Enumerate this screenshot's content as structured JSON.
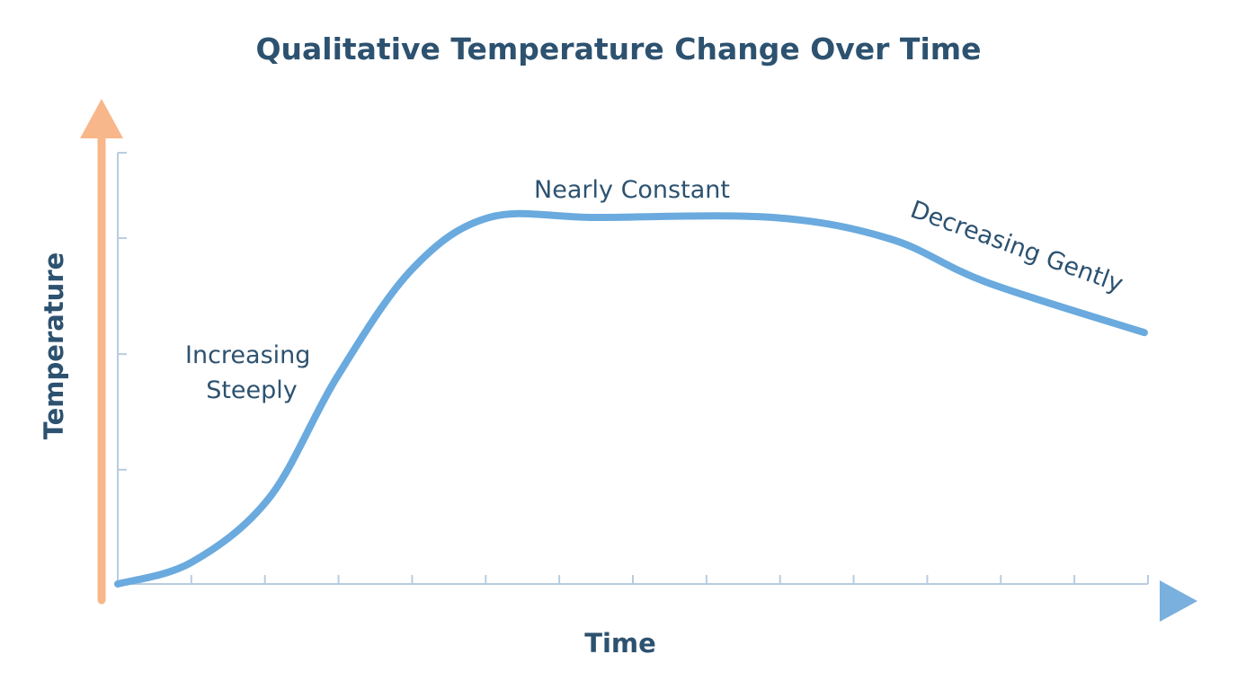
{
  "chart_data": {
    "type": "line",
    "title": "Qualitative Temperature Change Over Time",
    "xlabel": "Time",
    "ylabel": "Temperature",
    "xlim": [
      0,
      14
    ],
    "ylim": [
      0,
      1
    ],
    "x_tick_count": 14,
    "y_ticks": [
      0.265,
      0.533,
      0.802,
      1.0
    ],
    "grid": false,
    "legend": "none",
    "series": [
      {
        "x": [
          0,
          1,
          2.06,
          2.98,
          4,
          5.05,
          6.5,
          8.9,
          10.5,
          11.8,
          13.95
        ],
        "y": [
          0,
          0.05,
          0.2,
          0.48,
          0.73,
          0.85,
          0.85,
          0.85,
          0.8,
          0.7,
          0.583
        ]
      }
    ],
    "annotations": [
      {
        "id": "increasing",
        "lines": [
          "Increasing",
          "Steeply"
        ]
      },
      {
        "id": "constant",
        "lines": [
          "Nearly Constant"
        ]
      },
      {
        "id": "decreasing",
        "lines": [
          "Decreasing Gently"
        ]
      }
    ],
    "colors": {
      "title": "#2d5270",
      "line": "#6aaade",
      "axis_start": "#f8b78a",
      "axis_end": "#79b0de",
      "ticks": "#b8cde0"
    }
  }
}
